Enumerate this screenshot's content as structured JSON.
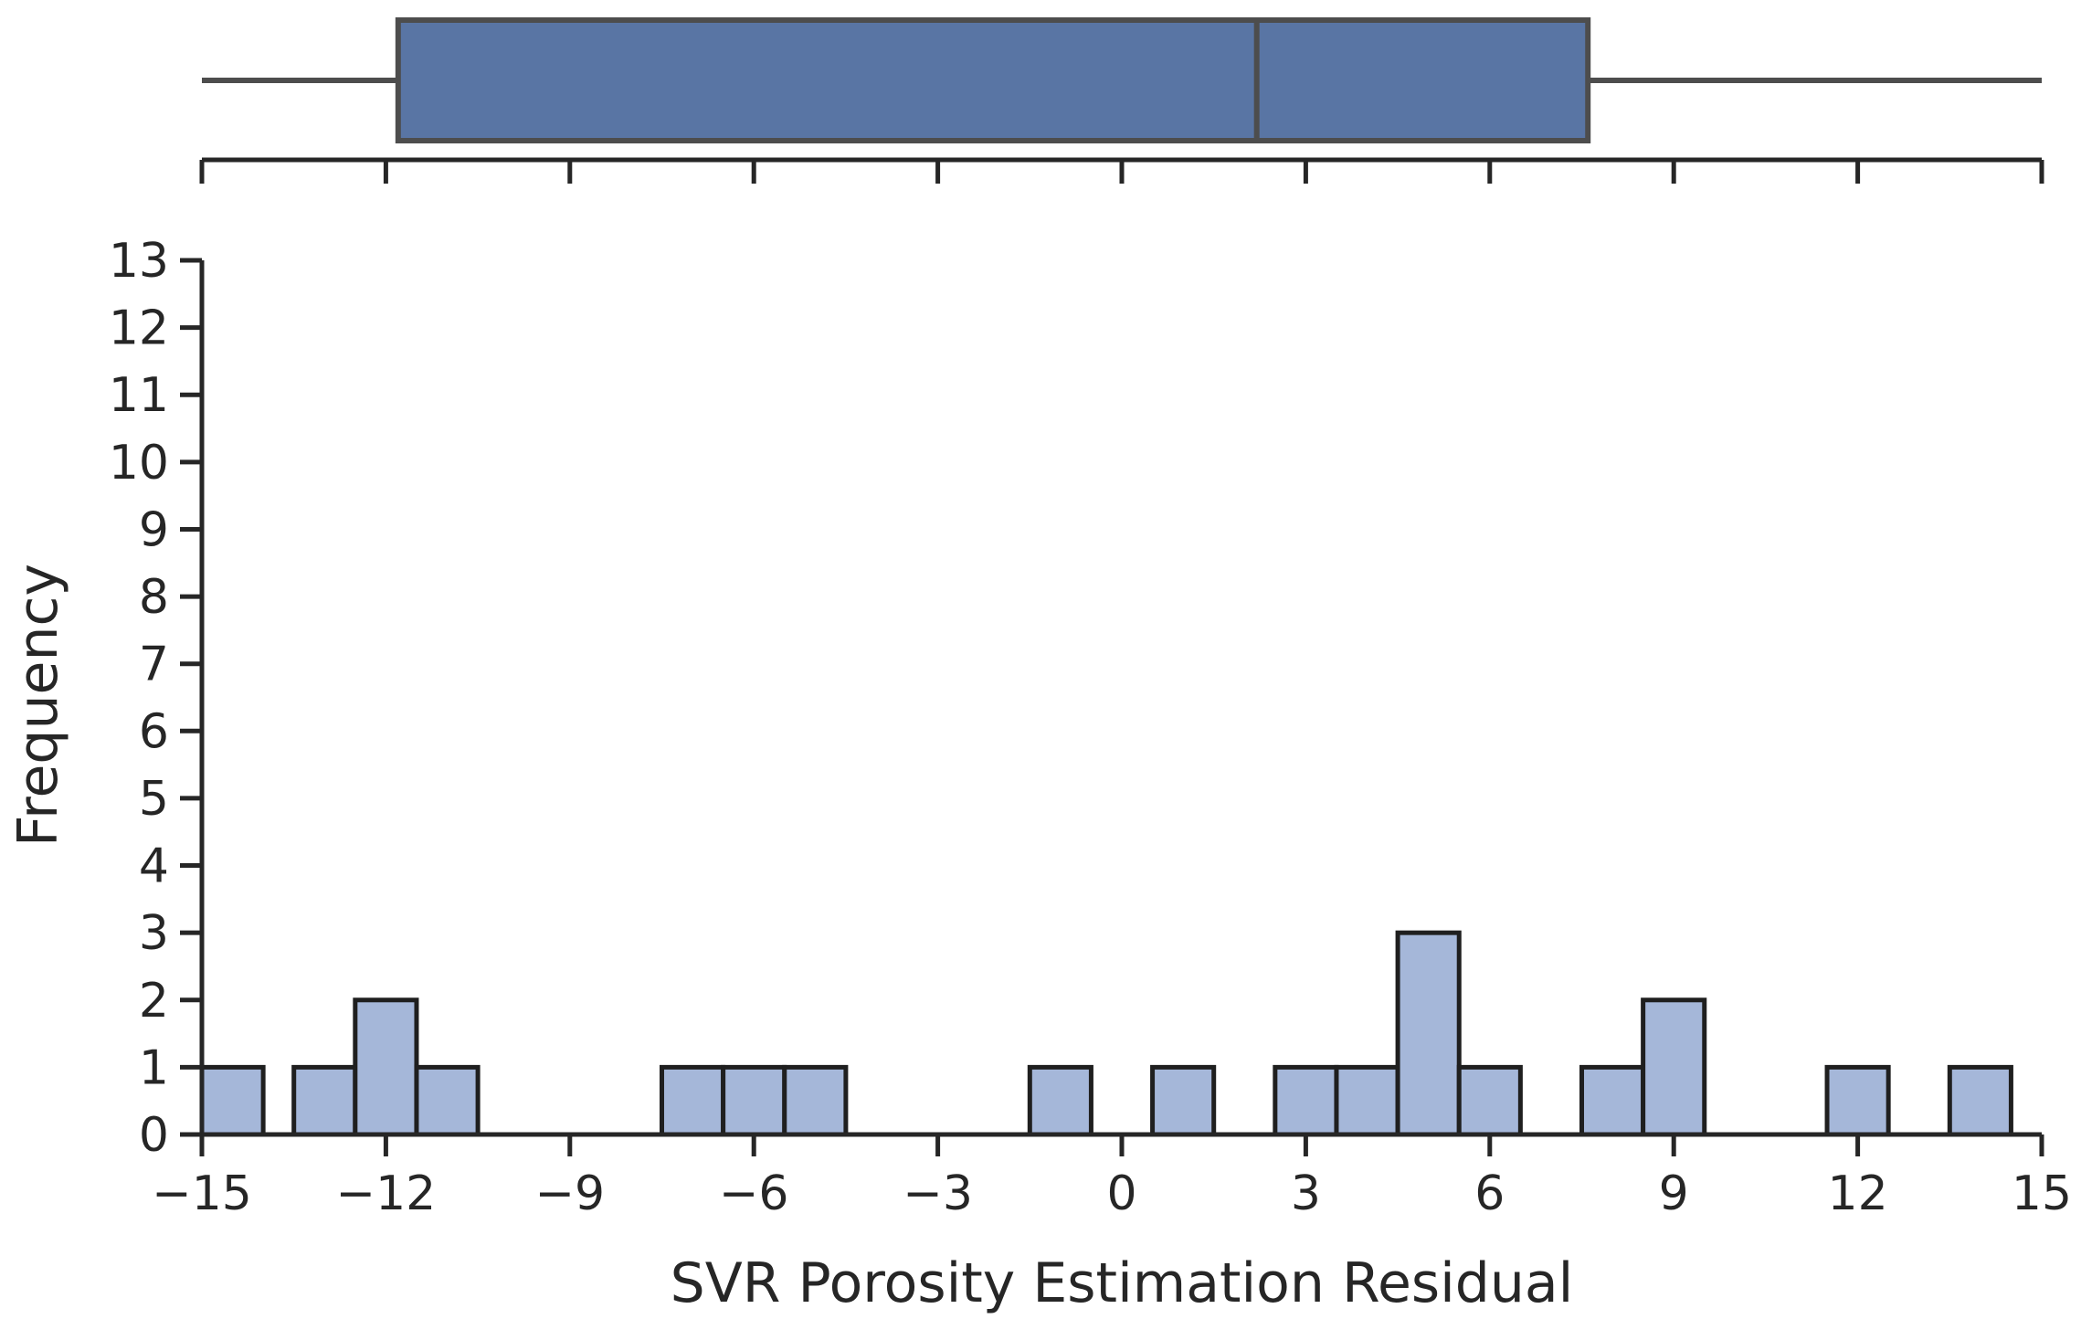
{
  "chart_data": [
    {
      "type": "boxplot",
      "orientation": "horizontal",
      "xlim": [
        -15,
        15
      ],
      "whisker_low": -15,
      "q1": -11.8,
      "median": 2.2,
      "q3": 7.6,
      "whisker_high": 15,
      "box_color": "#5975a4",
      "line_color": "#4d4d4d"
    },
    {
      "type": "bar",
      "subtype": "histogram",
      "xlabel": "SVR Porosity Estimation Residual",
      "ylabel": "Frequency",
      "xlim": [
        -15,
        15
      ],
      "ylim": [
        0,
        13
      ],
      "x_ticks": [
        -15,
        -12,
        -9,
        -6,
        -3,
        0,
        3,
        6,
        9,
        12,
        15
      ],
      "x_tick_labels": [
        "−15",
        "−12",
        "−9",
        "−6",
        "−3",
        "0",
        "3",
        "6",
        "9",
        "12",
        "15"
      ],
      "y_ticks": [
        0,
        1,
        2,
        3,
        4,
        5,
        6,
        7,
        8,
        9,
        10,
        11,
        12,
        13
      ],
      "y_tick_labels": [
        "0",
        "1",
        "2",
        "3",
        "4",
        "5",
        "6",
        "7",
        "8",
        "9",
        "10",
        "11",
        "12",
        "13"
      ],
      "bin_width": 1,
      "bins": [
        {
          "left": -15,
          "count": 1
        },
        {
          "left": -13.5,
          "count": 1
        },
        {
          "left": -12.5,
          "count": 2
        },
        {
          "left": -11.5,
          "count": 1
        },
        {
          "left": -7.5,
          "count": 1
        },
        {
          "left": -6.5,
          "count": 1
        },
        {
          "left": -5.5,
          "count": 1
        },
        {
          "left": -1.5,
          "count": 1
        },
        {
          "left": 0.5,
          "count": 1
        },
        {
          "left": 2.5,
          "count": 1
        },
        {
          "left": 3.5,
          "count": 1
        },
        {
          "left": 4.5,
          "count": 3
        },
        {
          "left": 5.5,
          "count": 1
        },
        {
          "left": 7.5,
          "count": 1
        },
        {
          "left": 8.5,
          "count": 2
        },
        {
          "left": 11.5,
          "count": 1
        },
        {
          "left": 13.5,
          "count": 1
        }
      ],
      "bar_color": "#a5b7d9",
      "edge_color": "#1f1f1f",
      "grid": false
    }
  ]
}
